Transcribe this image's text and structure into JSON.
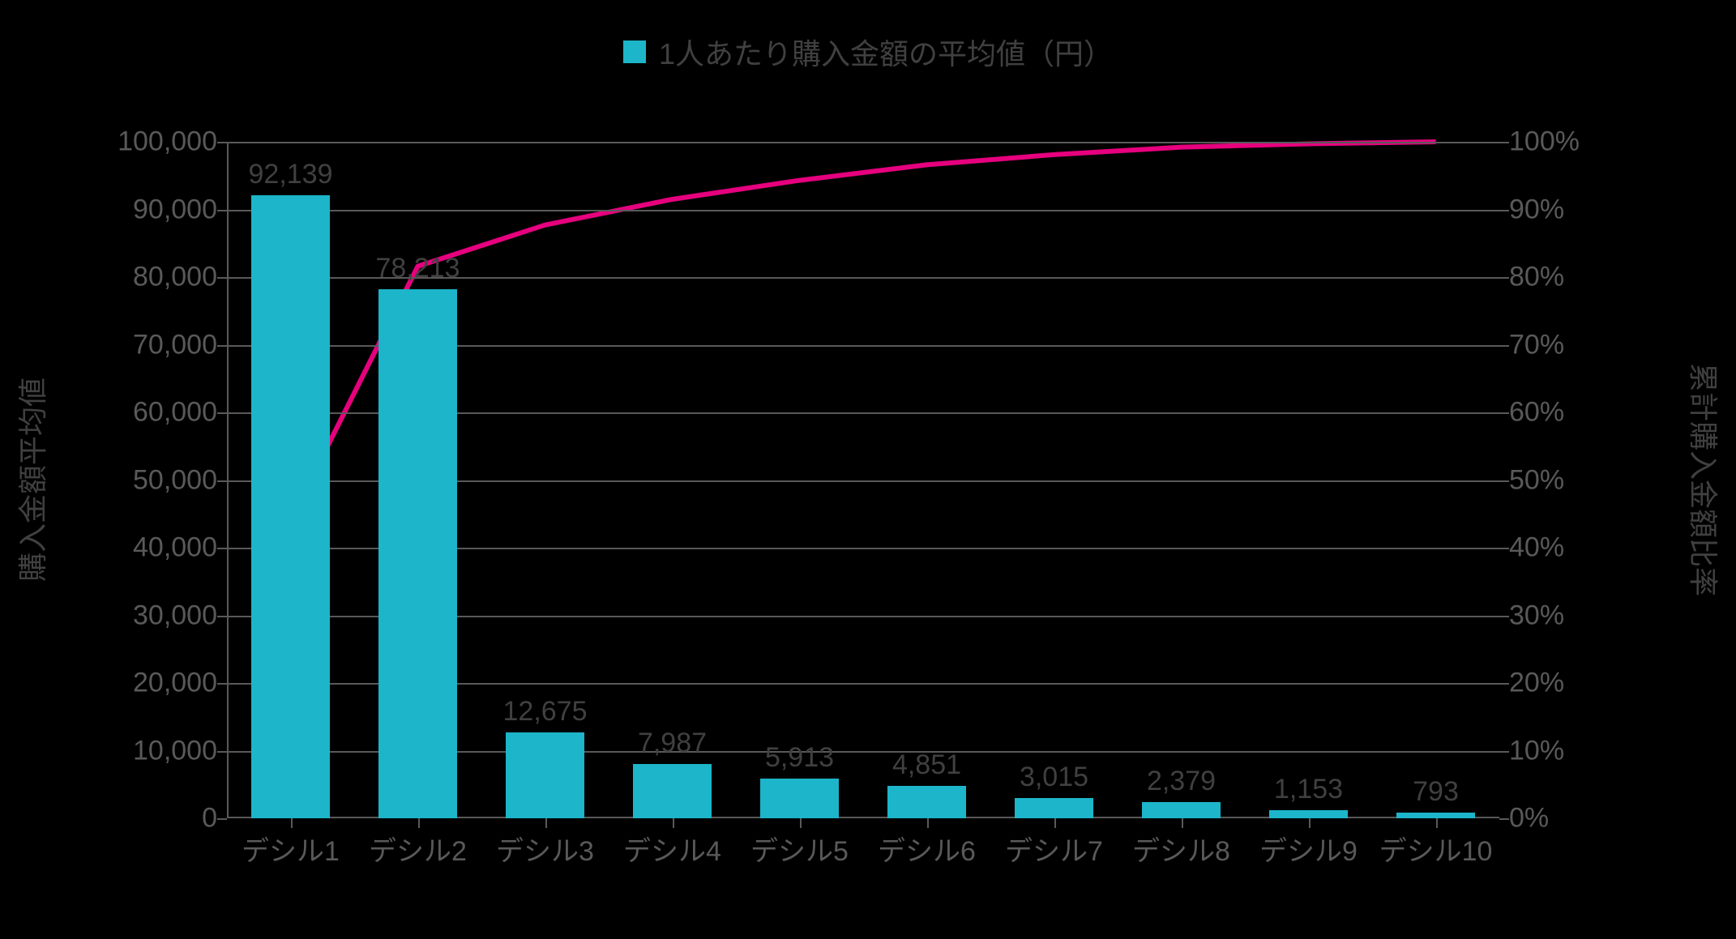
{
  "legend": {
    "label": "1人あたり購入金額の平均値（円）",
    "swatch_color": "#1cb5c9"
  },
  "axis": {
    "y1_title": "購入金額平均値",
    "y2_title": "累計購入金額比率",
    "y1_min": 0,
    "y1_max": 100000,
    "y1_step": 10000,
    "y2_min": 0,
    "y2_max": 100,
    "y2_step": 10,
    "tick_color": "#595959",
    "grid_color": "#595959",
    "tick_fontsize": 34,
    "title_fontsize": 36
  },
  "plot": {
    "background": "#000000",
    "bar_color": "#1cb5c9",
    "line_color": "#e6007e",
    "line_width": 6,
    "bar_width_ratio": 0.62,
    "label_color": "#404040",
    "label_fontsize": 34
  },
  "categories": [
    "デシル1",
    "デシル2",
    "デシル3",
    "デシル4",
    "デシル5",
    "デシル6",
    "デシル7",
    "デシル8",
    "デシル9",
    "デシル10"
  ],
  "bar_values": [
    92139,
    78213,
    12675,
    7987,
    5913,
    4851,
    3015,
    2379,
    1153,
    793
  ],
  "bar_labels": [
    "92,139",
    "78,213",
    "12,675",
    "7,987",
    "5,913",
    "4,851",
    "3,015",
    "2,379",
    "1,153",
    "793"
  ],
  "line_values_pct": [
    44.1,
    81.6,
    87.7,
    91.5,
    94.3,
    96.6,
    98.1,
    99.2,
    99.7,
    100
  ],
  "y1_tick_labels": [
    "0",
    "10,000",
    "20,000",
    "30,000",
    "40,000",
    "50,000",
    "60,000",
    "70,000",
    "80,000",
    "90,000",
    "100,000"
  ],
  "y2_tick_labels": [
    "0%",
    "10%",
    "20%",
    "30%",
    "40%",
    "50%",
    "60%",
    "70%",
    "80%",
    "90%",
    "100%"
  ]
}
